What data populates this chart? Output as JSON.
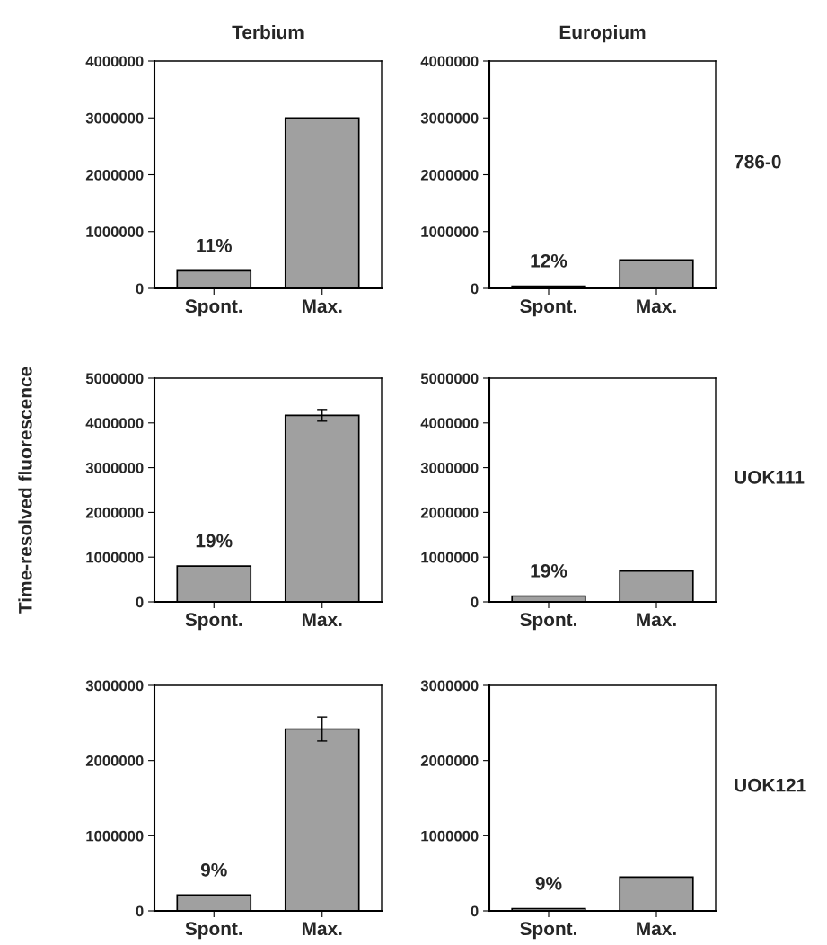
{
  "chart_data": [
    {
      "type": "bar",
      "title": "Terbium",
      "categories": [
        "Spont.",
        "Max."
      ],
      "values": [
        310000,
        3000000
      ],
      "color": "#a0a0a0",
      "ylim": [
        0,
        4000000
      ],
      "yticks": [
        0,
        1000000,
        2000000,
        3000000,
        4000000
      ],
      "annotations": [
        {
          "text": "11%",
          "x": "Spont.",
          "y": 310000
        }
      ]
    },
    {
      "type": "bar",
      "title": "Europium",
      "categories": [
        "Spont.",
        "Max."
      ],
      "values": [
        40000,
        500000
      ],
      "color": "#a0a0a0",
      "ylim": [
        0,
        4000000
      ],
      "yticks": [
        0,
        1000000,
        2000000,
        3000000,
        4000000
      ],
      "annotations": [
        {
          "text": "12%",
          "x": "Spont.",
          "y": 40000
        },
        "786-0"
      ]
    },
    {
      "type": "bar",
      "ylabel": "Time-resolved fluorescence",
      "categories": [
        "Spont.",
        "Max."
      ],
      "values": [
        800000,
        4170000
      ],
      "errors": [
        null,
        130000
      ],
      "color": "#a0a0a0",
      "ylim": [
        0,
        5000000
      ],
      "yticks": [
        0,
        1000000,
        2000000,
        3000000,
        4000000,
        5000000
      ],
      "annotations": [
        {
          "text": "19%",
          "x": "Spont.",
          "y": 800000
        }
      ]
    },
    {
      "type": "bar",
      "categories": [
        "Spont.",
        "Max."
      ],
      "values": [
        130000,
        690000
      ],
      "color": "#a0a0a0",
      "ylim": [
        0,
        5000000
      ],
      "yticks": [
        0,
        1000000,
        2000000,
        3000000,
        4000000,
        5000000
      ],
      "annotations": [
        {
          "text": "19%",
          "x": "Spont.",
          "y": 130000
        },
        "UOK111"
      ]
    },
    {
      "type": "bar",
      "categories": [
        "Spont.",
        "Max."
      ],
      "values": [
        210000,
        2420000
      ],
      "errors": [
        null,
        160000
      ],
      "color": "#a0a0a0",
      "ylim": [
        0,
        3000000
      ],
      "yticks": [
        0,
        1000000,
        2000000,
        3000000
      ],
      "annotations": [
        {
          "text": "9%",
          "x": "Spont.",
          "y": 210000
        }
      ]
    },
    {
      "type": "bar",
      "categories": [
        "Spont.",
        "Max."
      ],
      "values": [
        30000,
        450000
      ],
      "color": "#a0a0a0",
      "ylim": [
        0,
        3000000
      ],
      "yticks": [
        0,
        1000000,
        2000000,
        3000000
      ],
      "annotations": [
        {
          "text": "9%",
          "x": "Spont.",
          "y": 30000
        },
        "UOK121"
      ]
    }
  ]
}
